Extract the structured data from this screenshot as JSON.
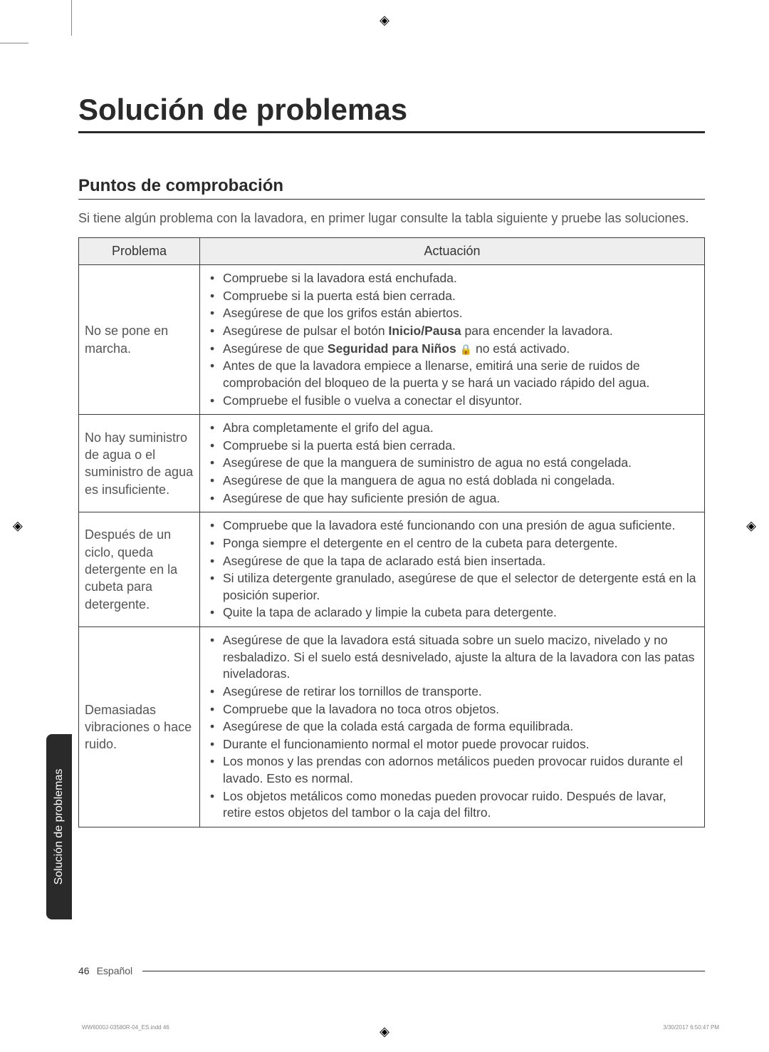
{
  "crop_mark_glyph": "◈",
  "side_tab": {
    "label": "Solución de problemas",
    "bg": "#2a2a2a",
    "fg": "#ffffff"
  },
  "title": "Solución de problemas",
  "subtitle": "Puntos de comprobación",
  "intro": "Si tiene algún problema con la lavadora, en primer lugar consulte la tabla siguiente y pruebe las soluciones.",
  "table": {
    "header_bg": "#eeeeee",
    "border_color": "#3a3a3a",
    "col_problem": "Problema",
    "col_action": "Actuación",
    "rows": [
      {
        "problem": "No se pone en marcha.",
        "actions": [
          {
            "text": "Compruebe si la lavadora está enchufada."
          },
          {
            "text": "Compruebe si la puerta está bien cerrada."
          },
          {
            "text": "Asegúrese de que los grifos están abiertos."
          },
          {
            "prefix": "Asegúrese de pulsar el botón ",
            "bold": "Inicio/Pausa",
            "suffix": " para encender la lavadora."
          },
          {
            "prefix": "Asegúrese de que ",
            "bold": "Seguridad para Niños",
            "icon": "🔒",
            "suffix": " no está activado."
          },
          {
            "text": "Antes de que la lavadora empiece a llenarse, emitirá una serie de ruidos de comprobación del bloqueo de la puerta y se hará un vaciado rápido del agua."
          },
          {
            "text": "Compruebe el fusible o vuelva a conectar el disyuntor."
          }
        ]
      },
      {
        "problem": "No hay suministro de agua o el suministro de agua es insuficiente.",
        "actions": [
          {
            "text": "Abra completamente el grifo del agua."
          },
          {
            "text": "Compruebe si la puerta está bien cerrada."
          },
          {
            "text": "Asegúrese de que la manguera de suministro de agua no está congelada."
          },
          {
            "text": "Asegúrese de que la manguera de agua no está doblada ni congelada."
          },
          {
            "text": "Asegúrese de que hay suficiente presión de agua."
          }
        ]
      },
      {
        "problem": "Después de un ciclo, queda detergente en la cubeta para detergente.",
        "actions": [
          {
            "text": "Compruebe que la lavadora esté funcionando con una presión de agua suficiente."
          },
          {
            "text": "Ponga siempre el detergente en el centro de la cubeta para detergente."
          },
          {
            "text": "Asegúrese de que la tapa de aclarado está bien insertada."
          },
          {
            "text": "Si utiliza detergente granulado, asegúrese de que el selector de detergente está en la posición superior."
          },
          {
            "text": "Quite la tapa de aclarado y limpie la cubeta para detergente."
          }
        ]
      },
      {
        "problem": "Demasiadas vibraciones o hace ruido.",
        "actions": [
          {
            "text": "Asegúrese de que la lavadora está situada sobre un suelo macizo, nivelado y no resbaladizo. Si el suelo está desnivelado, ajuste la altura de la lavadora con las patas niveladoras."
          },
          {
            "text": "Asegúrese de retirar los tornillos de transporte."
          },
          {
            "text": "Compruebe que la lavadora no toca otros objetos."
          },
          {
            "text": "Asegúrese de que la colada está cargada de forma equilibrada."
          },
          {
            "text": "Durante el funcionamiento normal el motor puede provocar ruidos."
          },
          {
            "text": "Los monos y las prendas con adornos metálicos pueden provocar ruidos durante el lavado. Esto es normal."
          },
          {
            "text": "Los objetos metálicos como monedas pueden provocar ruido. Después de lavar, retire estos objetos del tambor o la caja del filtro."
          }
        ]
      }
    ]
  },
  "footer": {
    "page": "46",
    "lang": "Español"
  },
  "print_meta": {
    "left": "WW6000J-03580R-04_ES.indd   46",
    "right": "3/30/2017   6:50:47 PM"
  }
}
